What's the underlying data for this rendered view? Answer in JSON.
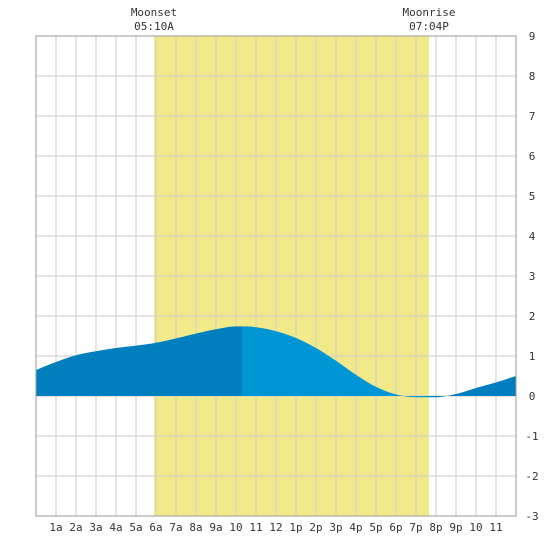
{
  "chart_data": {
    "type": "area",
    "title": "",
    "xlabel": "",
    "ylabel": "",
    "x_range_hours": [
      0,
      24
    ],
    "ylim": [
      -3,
      9
    ],
    "y_ticks": [
      "-3",
      "-2",
      "-1",
      "0",
      "1",
      "2",
      "3",
      "4",
      "5",
      "6",
      "7",
      "8",
      "9"
    ],
    "x_tick_labels": [
      "1a",
      "2a",
      "3a",
      "4a",
      "5a",
      "6a",
      "7a",
      "8a",
      "9a",
      "10",
      "11",
      "12",
      "1p",
      "2p",
      "3p",
      "4p",
      "5p",
      "6p",
      "7p",
      "8p",
      "9p",
      "10",
      "11"
    ],
    "grid": true,
    "events": [
      {
        "name": "Moonset",
        "time": "05:10A"
      },
      {
        "name": "Moonrise",
        "time": "07:04P"
      }
    ],
    "daylight_hours": [
      5.9,
      19.65
    ],
    "current_time_hour": 10.3,
    "series": [
      {
        "x": [
          0,
          1,
          2,
          3,
          4,
          5,
          6,
          7,
          8,
          9,
          10,
          10.5,
          11,
          12,
          13,
          14,
          15,
          16,
          17,
          18,
          19,
          20,
          21,
          22,
          23,
          24
        ],
        "values": [
          0.65,
          0.85,
          1.02,
          1.12,
          1.2,
          1.26,
          1.33,
          1.44,
          1.56,
          1.67,
          1.74,
          1.74,
          1.72,
          1.62,
          1.45,
          1.2,
          0.88,
          0.53,
          0.23,
          0.04,
          -0.03,
          -0.03,
          0.05,
          0.2,
          0.34,
          0.5
        ]
      }
    ],
    "colors": {
      "daylight": "#f2ea8a",
      "past_area": "#007fbf",
      "future_area": "#0096d6",
      "grid": "#cccccc"
    }
  }
}
